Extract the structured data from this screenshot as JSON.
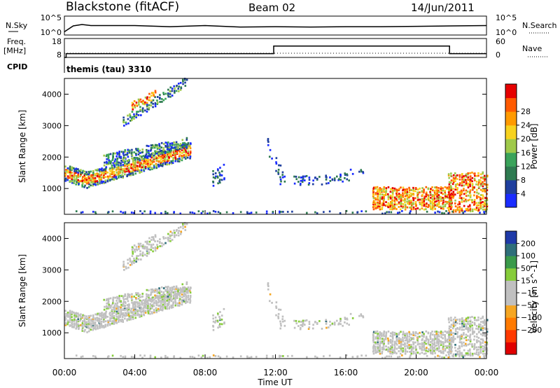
{
  "header": {
    "radar": "Blackstone (fitACF)",
    "beam": "Beam 02",
    "date": "14/Jun/2011"
  },
  "noise_panel": {
    "left_label": "N.Sky",
    "left_ticks": [
      "10^5",
      "10^0"
    ],
    "right_label": "N.Search",
    "right_ticks": [
      "10^5",
      "10^0"
    ]
  },
  "freq_panel": {
    "left_label_1": "Freq.",
    "left_label_2": "[MHz]",
    "left_ticks": [
      "18",
      "8"
    ],
    "right_label": "Nave",
    "right_ticks": [
      "60",
      "0"
    ],
    "cpid_label": "CPID",
    "cpid_text": "themis (tau) 3310"
  },
  "colors": {
    "power_scale": [
      "#1a2cff",
      "#1f3f9e",
      "#2e7a50",
      "#3aa35a",
      "#9fc94a",
      "#f7d21f",
      "#ff9a00",
      "#ff5a00",
      "#e60000"
    ],
    "velocity_scale": [
      "#1f3aa8",
      "#2f6f7a",
      "#3a9a4a",
      "#86cc3a",
      "#c0c0c0",
      "#c0c0c0",
      "#f5a623",
      "#ff7a00",
      "#ff3a00",
      "#e00000"
    ],
    "gray": "#c0c0c0"
  },
  "chart_data": [
    {
      "type": "line",
      "panel": "noise",
      "x_unit": "hours UT",
      "series": [
        {
          "name": "N.Sky",
          "x": [
            0.0,
            0.5,
            1.0,
            1.5,
            2.0,
            3.0,
            4.0,
            6.0,
            8.0,
            10.0,
            12.0,
            14.0,
            16.0,
            18.0,
            20.0,
            22.0,
            24.0
          ],
          "y_log10": [
            0.6,
            2.4,
            2.6,
            2.5,
            2.3,
            2.5,
            2.3,
            2.2,
            2.3,
            2.1,
            2.0,
            2.1,
            2.0,
            2.2,
            2.1,
            2.4,
            2.3
          ]
        }
      ]
    },
    {
      "type": "line",
      "panel": "frequency",
      "x_unit": "hours UT",
      "series": [
        {
          "name": "Freq.",
          "x": [
            0.0,
            0.1,
            0.1,
            11.9,
            11.9,
            21.9,
            21.9,
            24.0
          ],
          "y": [
            8,
            8,
            10,
            10,
            14,
            14,
            10,
            10
          ]
        },
        {
          "name": "Nave",
          "x": [
            0.0,
            24.0
          ],
          "y": [
            0,
            0
          ]
        }
      ]
    },
    {
      "type": "heatmap",
      "panel": "power",
      "xlabel": "",
      "ylabel": "Slant Range [km]",
      "xlim": [
        0,
        24
      ],
      "ylim": [
        180,
        4500
      ],
      "yticks": [
        1000,
        2000,
        3000,
        4000
      ],
      "colorbar_label": "Power [dB]",
      "colorbar_ticks": [
        "4",
        "8",
        "12",
        "16",
        "20",
        "24",
        "28"
      ],
      "regions": [
        {
          "x": [
            0.0,
            7.0
          ],
          "y": [
            1000,
            1650
          ],
          "level": "high",
          "shape": "rising band"
        },
        {
          "x": [
            2.0,
            7.0
          ],
          "y": [
            1700,
            2600
          ],
          "level": "mid",
          "shape": "rising band"
        },
        {
          "x": [
            3.0,
            7.0
          ],
          "y": [
            2900,
            4500
          ],
          "level": "mid",
          "shape": "rising band"
        },
        {
          "x": [
            17.5,
            22.0
          ],
          "y": [
            300,
            1000
          ],
          "level": "high",
          "shape": "patch"
        },
        {
          "x": [
            21.8,
            24.0
          ],
          "y": [
            200,
            1500
          ],
          "level": "high",
          "shape": "patch"
        },
        {
          "x": [
            12.5,
            16.5
          ],
          "y": [
            900,
            1600
          ],
          "level": "low",
          "shape": "scattered"
        }
      ]
    },
    {
      "type": "heatmap",
      "panel": "velocity",
      "xlabel": "Time UT",
      "ylabel": "Slant Range [km]",
      "xlim": [
        0,
        24
      ],
      "ylim": [
        180,
        4500
      ],
      "yticks": [
        1000,
        2000,
        3000,
        4000
      ],
      "xticks": [
        "00:00",
        "04:00",
        "08:00",
        "12:00",
        "16:00",
        "20:00",
        "00:00"
      ],
      "colorbar_label": "Velocity [m s^-1]",
      "colorbar_ticks": [
        "200",
        "100",
        "50",
        "15",
        "−15",
        "−50",
        "−100",
        "−200"
      ]
    }
  ]
}
